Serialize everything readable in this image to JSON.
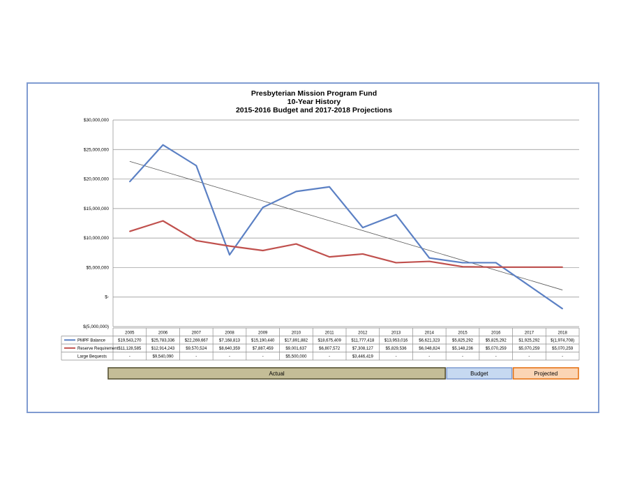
{
  "chart_data": {
    "type": "line",
    "title": [
      "Presbyterian Mission Program Fund",
      "10-Year History",
      "2015-2016 Budget and 2017-2018 Projections"
    ],
    "categories": [
      "2005",
      "2006",
      "2007",
      "2008",
      "2009",
      "2010",
      "2011",
      "2012",
      "2013",
      "2014",
      "2015",
      "2016",
      "2017",
      "2018"
    ],
    "ylim": [
      -5000000,
      30000000
    ],
    "y_ticks": [
      {
        "value": 30000000,
        "label": "$30,000,000"
      },
      {
        "value": 25000000,
        "label": "$25,000,000"
      },
      {
        "value": 20000000,
        "label": "$20,000,000"
      },
      {
        "value": 15000000,
        "label": "$15,000,000"
      },
      {
        "value": 10000000,
        "label": "$10,000,000"
      },
      {
        "value": 5000000,
        "label": "$5,000,000"
      },
      {
        "value": 0,
        "label": "$-"
      },
      {
        "value": -5000000,
        "label": "$(5,000,000)"
      }
    ],
    "series": [
      {
        "name": "PMPF Balance",
        "color": "#5b80c4",
        "values": [
          19543270,
          25783336,
          22269667,
          7168813,
          15190440,
          17891882,
          18675409,
          11777418,
          13953016,
          6621323,
          5825292,
          5825292,
          1925292,
          -1974708
        ],
        "labels": [
          "$19,543,270",
          "$25,783,336",
          "$22,269,667",
          "$7,168,813",
          "$15,190,440",
          "$17,891,882",
          "$18,675,409",
          "$11,777,418",
          "$13,953,016",
          "$6,621,323",
          "$5,825,292",
          "$5,825,292",
          "$1,925,292",
          "$(1,974,708)"
        ]
      },
      {
        "name": "Reserve Requirement",
        "color": "#c0504d",
        "values": [
          11128585,
          12914243,
          9570524,
          8640359,
          7887459,
          9001637,
          6807572,
          7308127,
          5829536,
          6048824,
          5148236,
          5070259,
          5070259,
          5070259
        ],
        "labels": [
          "$11,128,585",
          "$12,914,243",
          "$9,570,524",
          "$8,640,359",
          "$7,887,459",
          "$9,001,637",
          "$6,807,572",
          "$7,308,127",
          "$5,829,536",
          "$6,048,824",
          "$5,148,236",
          "$5,070,259",
          "$5,070,259",
          "$5,070,259"
        ]
      },
      {
        "name": "Large Bequests",
        "color": null,
        "values": [
          null,
          9540090,
          null,
          null,
          null,
          5500000,
          null,
          3446419,
          null,
          null,
          null,
          null,
          null,
          null
        ],
        "labels": [
          "-",
          "$9,540,090",
          "-",
          "-",
          "-",
          "$5,500,000",
          "-",
          "$3,446,419",
          "-",
          "-",
          "-",
          "-",
          "-",
          "-"
        ]
      }
    ],
    "trendline": {
      "series": "PMPF Balance",
      "color": "#555555",
      "start_value": 23000000,
      "end_value": 1200000
    },
    "periods": [
      {
        "label": "Actual",
        "from": "2005",
        "to": "2014",
        "fill": "#c4bd97",
        "stroke": "#4f4a2c"
      },
      {
        "label": "Budget",
        "from": "2015",
        "to": "2016",
        "fill": "#c6d9f1",
        "stroke": "#7f9bd1"
      },
      {
        "label": "Projected",
        "from": "2017",
        "to": "2018",
        "fill": "#fbd5b5",
        "stroke": "#e46c0a"
      }
    ]
  }
}
